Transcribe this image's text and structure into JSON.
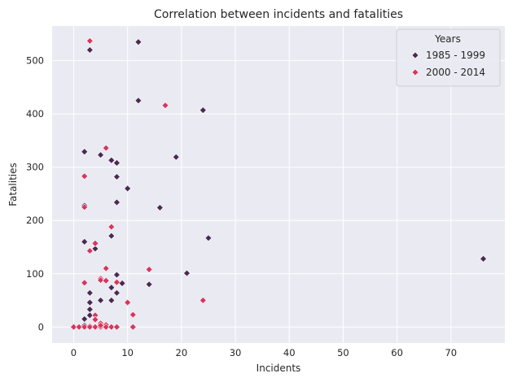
{
  "chart_data": {
    "type": "scatter",
    "title": "Correlation between incidents and fatalities",
    "xlabel": "Incidents",
    "ylabel": "Fatalities",
    "xlim": [
      -4,
      80
    ],
    "ylim": [
      -30,
      565
    ],
    "xticks": [
      0,
      10,
      20,
      30,
      40,
      50,
      60,
      70
    ],
    "yticks": [
      0,
      100,
      200,
      300,
      400,
      500
    ],
    "grid": true,
    "marker": "diamond",
    "legend": {
      "title": "Years",
      "position": "top-right"
    },
    "colors": {
      "background": "#eaeaf2",
      "grid": "#ffffff"
    },
    "series": [
      {
        "name": "1985 - 1999",
        "color": "#4a2a52",
        "points": [
          [
            3,
            520
          ],
          [
            12,
            535
          ],
          [
            12,
            425
          ],
          [
            24,
            407
          ],
          [
            2,
            329
          ],
          [
            5,
            323
          ],
          [
            7,
            313
          ],
          [
            8,
            308
          ],
          [
            19,
            319
          ],
          [
            8,
            282
          ],
          [
            10,
            260
          ],
          [
            8,
            234
          ],
          [
            16,
            224
          ],
          [
            2,
            228
          ],
          [
            25,
            167
          ],
          [
            2,
            160
          ],
          [
            7,
            171
          ],
          [
            4,
            147
          ],
          [
            76,
            128
          ],
          [
            21,
            101
          ],
          [
            8,
            98
          ],
          [
            14,
            80
          ],
          [
            9,
            82
          ],
          [
            7,
            74
          ],
          [
            8,
            64
          ],
          [
            3,
            64
          ],
          [
            7,
            50
          ],
          [
            5,
            50
          ],
          [
            3,
            46
          ],
          [
            3,
            33
          ],
          [
            3,
            22
          ],
          [
            2,
            15
          ],
          [
            2,
            3
          ],
          [
            0,
            0
          ],
          [
            1,
            0
          ],
          [
            2,
            0
          ],
          [
            3,
            0
          ],
          [
            4,
            0
          ],
          [
            5,
            0
          ],
          [
            7,
            0
          ],
          [
            8,
            0
          ],
          [
            6,
            3
          ]
        ]
      },
      {
        "name": "2000 - 2014",
        "color": "#d8365e",
        "points": [
          [
            3,
            537
          ],
          [
            17,
            416
          ],
          [
            6,
            336
          ],
          [
            2,
            283
          ],
          [
            2,
            225
          ],
          [
            7,
            188
          ],
          [
            4,
            157
          ],
          [
            3,
            143
          ],
          [
            6,
            110
          ],
          [
            14,
            108
          ],
          [
            5,
            91
          ],
          [
            5,
            88
          ],
          [
            6,
            87
          ],
          [
            2,
            83
          ],
          [
            8,
            84
          ],
          [
            10,
            46
          ],
          [
            24,
            50
          ],
          [
            4,
            22
          ],
          [
            11,
            23
          ],
          [
            4,
            14
          ],
          [
            5,
            7
          ],
          [
            6,
            4
          ],
          [
            3,
            2
          ],
          [
            0,
            0
          ],
          [
            1,
            0
          ],
          [
            2,
            0
          ],
          [
            3,
            0
          ],
          [
            4,
            0
          ],
          [
            5,
            0
          ],
          [
            6,
            0
          ],
          [
            7,
            0
          ],
          [
            8,
            0
          ],
          [
            11,
            0
          ],
          [
            5,
            3
          ]
        ]
      }
    ]
  }
}
